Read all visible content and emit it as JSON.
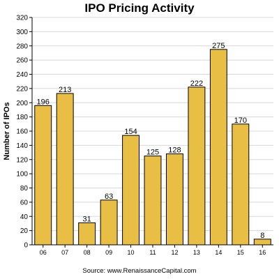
{
  "chart_data": {
    "type": "bar",
    "title": "IPO Pricing Activity",
    "xlabel": "",
    "ylabel": "Number of IPOs",
    "categories": [
      "06",
      "07",
      "08",
      "09",
      "10",
      "11",
      "12",
      "13",
      "14",
      "15",
      "16"
    ],
    "values": [
      196,
      213,
      31,
      63,
      154,
      125,
      128,
      222,
      275,
      170,
      8
    ],
    "ylim": [
      0,
      320
    ],
    "yticks": [
      0,
      20,
      40,
      60,
      80,
      100,
      120,
      140,
      160,
      180,
      200,
      220,
      240,
      260,
      280,
      300,
      320
    ],
    "grid": true,
    "legend": "none",
    "bar_color": "#E8BE45",
    "bar_edge_color": "#000000",
    "grid_color": "#D8D8D8"
  },
  "source_note": "Source: www.RenaissanceCapital.com"
}
